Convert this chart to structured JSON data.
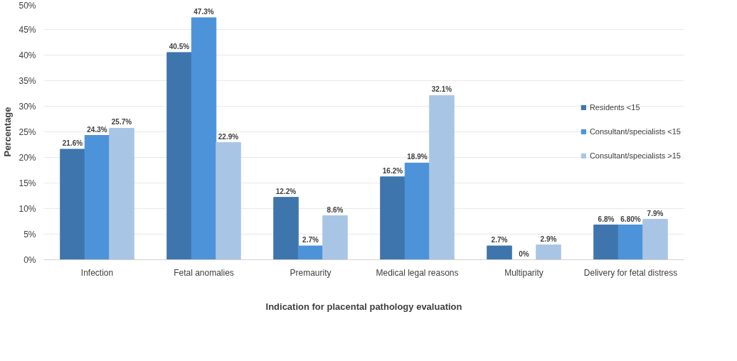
{
  "chart_data": {
    "type": "bar",
    "xlabel": "Indication for placental pathology evaluation",
    "ylabel": "Percentage",
    "categories": [
      "Infection",
      "Fetal anomalies",
      "Premaurity",
      "Medical legal reasons",
      "Multiparity",
      "Delivery for fetal distress"
    ],
    "series": [
      {
        "name": "Residents <15",
        "color": "#3f75ad",
        "values": [
          21.6,
          40.5,
          12.2,
          16.2,
          2.7,
          6.8
        ],
        "value_labels": [
          "21.6%",
          "40.5%",
          "12.2%",
          "16.2%",
          "2.7%",
          "6.8%"
        ]
      },
      {
        "name": "Consultant/specialists <15",
        "color": "#4d93d9",
        "values": [
          24.3,
          47.3,
          2.7,
          18.9,
          0,
          6.8
        ],
        "value_labels": [
          "24.3%",
          "47.3%",
          "2.7%",
          "18.9%",
          "0%",
          "6.80%"
        ]
      },
      {
        "name": "Consultant/specialists >15",
        "color": "#a9c5e6",
        "values": [
          25.7,
          22.9,
          8.6,
          32.1,
          2.9,
          7.9
        ],
        "value_labels": [
          "25.7%",
          "22.9%",
          "8.6%",
          "32.1%",
          "2.9%",
          "7.9%"
        ]
      }
    ],
    "ylim": [
      0,
      50
    ],
    "yticks": [
      {
        "value": 0,
        "label": "0%"
      },
      {
        "value": 5,
        "label": "5%"
      },
      {
        "value": 10,
        "label": "10%"
      },
      {
        "value": 15,
        "label": "15%"
      },
      {
        "value": 20,
        "label": "20%"
      },
      {
        "value": 25,
        "label": "25%"
      },
      {
        "value": 30,
        "label": "30%"
      },
      {
        "value": 35,
        "label": "35%"
      },
      {
        "value": 40,
        "label": "40%"
      },
      {
        "value": 45,
        "label": "45%"
      },
      {
        "value": 50,
        "label": "50%"
      }
    ],
    "grid": "y",
    "legend": "right"
  }
}
